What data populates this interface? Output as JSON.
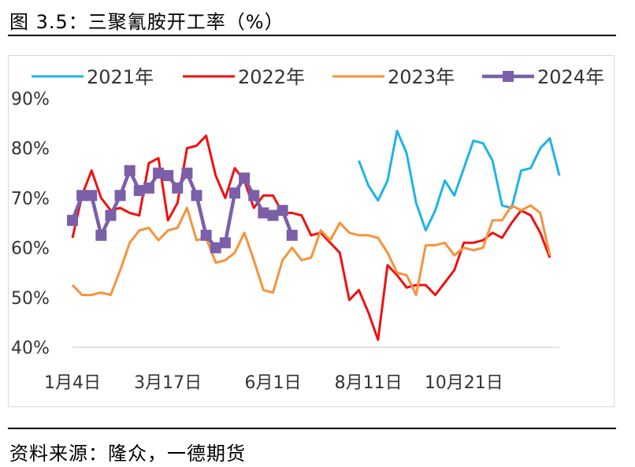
{
  "title": "图 3.5：三聚氰胺开工率（%）",
  "source": "资料来源：隆众，一德期货",
  "chart_data": {
    "type": "line",
    "title": "图 3.5：三聚氰胺开工率（%）",
    "xlabel": "",
    "ylabel": "",
    "ylim": [
      40,
      90
    ],
    "yticks": [
      "40%",
      "50%",
      "60%",
      "70%",
      "80%",
      "90%"
    ],
    "x_tick_labels": [
      "1月4日",
      "3月17日",
      "6月1日",
      "8月11日",
      "10月21日"
    ],
    "x_tick_weeks": [
      1,
      11,
      22,
      32,
      42
    ],
    "week_range": [
      1,
      52
    ],
    "legend_position": "top",
    "grid": false,
    "series": [
      {
        "name": "2021年",
        "color": "#1FB3E8",
        "marker": "none",
        "points": [
          [
            31,
            77.5
          ],
          [
            32,
            72.5
          ],
          [
            33,
            69.5
          ],
          [
            34,
            73.5
          ],
          [
            35,
            83.5
          ],
          [
            36,
            79
          ],
          [
            37,
            69
          ],
          [
            38,
            63.5
          ],
          [
            39,
            67.5
          ],
          [
            40,
            73.5
          ],
          [
            41,
            70.5
          ],
          [
            42,
            76
          ],
          [
            43,
            81.5
          ],
          [
            44,
            81
          ],
          [
            45,
            77.5
          ],
          [
            46,
            68.5
          ],
          [
            47,
            68
          ],
          [
            48,
            75.5
          ],
          [
            49,
            76
          ],
          [
            50,
            80
          ],
          [
            51,
            82
          ],
          [
            52,
            74.5
          ]
        ]
      },
      {
        "name": "2022年",
        "color": "#F01010",
        "marker": "none",
        "points": [
          [
            1,
            62
          ],
          [
            2,
            70.5
          ],
          [
            3,
            75.5
          ],
          [
            4,
            70
          ],
          [
            5,
            67.5
          ],
          [
            6,
            68
          ],
          [
            7,
            67
          ],
          [
            8,
            66.5
          ],
          [
            9,
            77
          ],
          [
            10,
            78
          ],
          [
            11,
            65.5
          ],
          [
            12,
            69
          ],
          [
            13,
            80
          ],
          [
            14,
            80.5
          ],
          [
            15,
            82.5
          ],
          [
            16,
            74.5
          ],
          [
            17,
            70
          ],
          [
            18,
            76
          ],
          [
            19,
            73.5
          ],
          [
            20,
            68
          ],
          [
            21,
            70.5
          ],
          [
            22,
            70.5
          ],
          [
            23,
            67
          ],
          [
            24,
            67
          ],
          [
            25,
            66.5
          ],
          [
            26,
            62.5
          ],
          [
            27,
            63
          ],
          [
            28,
            61
          ],
          [
            29,
            59
          ],
          [
            30,
            49.5
          ],
          [
            31,
            51.5
          ],
          [
            32,
            47
          ],
          [
            33,
            41.5
          ],
          [
            34,
            56.5
          ],
          [
            35,
            54.5
          ],
          [
            36,
            52
          ],
          [
            37,
            52.5
          ],
          [
            38,
            52.5
          ],
          [
            39,
            50.5
          ],
          [
            40,
            53
          ],
          [
            41,
            55.5
          ],
          [
            42,
            61
          ],
          [
            43,
            61
          ],
          [
            44,
            61.5
          ],
          [
            45,
            63
          ],
          [
            46,
            62
          ],
          [
            47,
            65
          ],
          [
            48,
            67.5
          ],
          [
            49,
            66.5
          ],
          [
            50,
            63
          ],
          [
            51,
            58
          ]
        ]
      },
      {
        "name": "2023年",
        "color": "#F7923A",
        "marker": "none",
        "points": [
          [
            1,
            52.5
          ],
          [
            2,
            50.5
          ],
          [
            3,
            50.5
          ],
          [
            4,
            51
          ],
          [
            5,
            50.5
          ],
          [
            6,
            55.5
          ],
          [
            7,
            61
          ],
          [
            8,
            63.5
          ],
          [
            9,
            64
          ],
          [
            10,
            61.5
          ],
          [
            11,
            63.5
          ],
          [
            12,
            64
          ],
          [
            13,
            68
          ],
          [
            14,
            61.5
          ],
          [
            15,
            62
          ],
          [
            16,
            57
          ],
          [
            17,
            57.5
          ],
          [
            18,
            59
          ],
          [
            19,
            63
          ],
          [
            20,
            57.5
          ],
          [
            21,
            51.5
          ],
          [
            22,
            51
          ],
          [
            23,
            57.5
          ],
          [
            24,
            60
          ],
          [
            25,
            57.5
          ],
          [
            26,
            58
          ],
          [
            27,
            63.5
          ],
          [
            28,
            61.5
          ],
          [
            29,
            65
          ],
          [
            30,
            63
          ],
          [
            31,
            62.5
          ],
          [
            32,
            62.5
          ],
          [
            33,
            62
          ],
          [
            34,
            59
          ],
          [
            35,
            55
          ],
          [
            36,
            54.5
          ],
          [
            37,
            50.5
          ],
          [
            38,
            60.5
          ],
          [
            39,
            60.5
          ],
          [
            40,
            61
          ],
          [
            41,
            58.5
          ],
          [
            42,
            60
          ],
          [
            43,
            59.5
          ],
          [
            44,
            60
          ],
          [
            45,
            65.5
          ],
          [
            46,
            65.5
          ],
          [
            47,
            68.5
          ],
          [
            48,
            67.5
          ],
          [
            49,
            68.5
          ],
          [
            50,
            67
          ],
          [
            51,
            58.5
          ]
        ]
      },
      {
        "name": "2024年",
        "color": "#7B5FA8",
        "marker": "square",
        "points": [
          [
            1,
            65.5
          ],
          [
            2,
            70.5
          ],
          [
            3,
            70.5
          ],
          [
            4,
            62.5
          ],
          [
            5,
            66.5
          ],
          [
            6,
            70.5
          ],
          [
            7,
            75.5
          ],
          [
            8,
            71.5
          ],
          [
            9,
            72
          ],
          [
            10,
            75
          ],
          [
            11,
            74.5
          ],
          [
            12,
            72
          ],
          [
            13,
            75
          ],
          [
            14,
            70.5
          ],
          [
            15,
            62.5
          ],
          [
            16,
            60
          ],
          [
            17,
            61
          ],
          [
            18,
            71
          ],
          [
            19,
            74
          ],
          [
            20,
            70.5
          ],
          [
            21,
            67
          ],
          [
            22,
            66.5
          ],
          [
            23,
            67.5
          ],
          [
            24,
            62.5
          ]
        ]
      }
    ]
  }
}
